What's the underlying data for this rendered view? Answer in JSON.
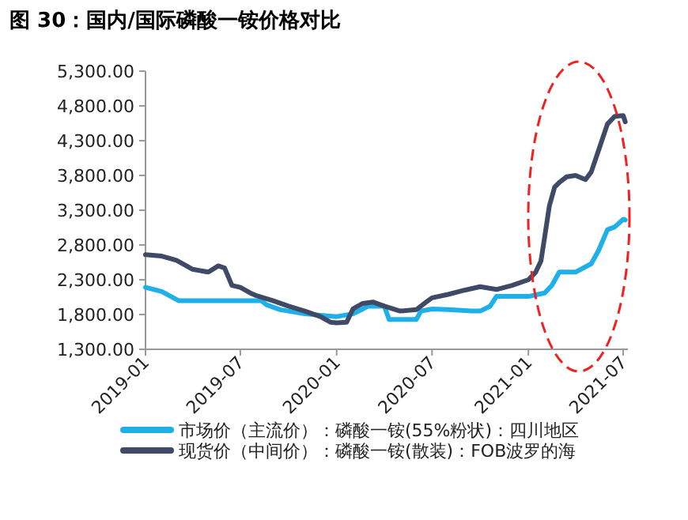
{
  "chart_data": {
    "type": "line",
    "title": "图 30：国内/国际磷酸一铵价格对比",
    "xlim": [
      "2019-01-01",
      "2021-07-10"
    ],
    "xticks": [
      "2019-01",
      "2019-07",
      "2020-01",
      "2020-07",
      "2021-01",
      "2021-07"
    ],
    "ylim": [
      1300,
      5300
    ],
    "yticks": [
      {
        "value": 1300,
        "label": "1,300.00"
      },
      {
        "value": 1800,
        "label": "1,800.00"
      },
      {
        "value": 2300,
        "label": "2,300.00"
      },
      {
        "value": 2800,
        "label": "2,800.00"
      },
      {
        "value": 3300,
        "label": "3,300.00"
      },
      {
        "value": 3800,
        "label": "3,800.00"
      },
      {
        "value": 4300,
        "label": "4,300.00"
      },
      {
        "value": 4800,
        "label": "4,800.00"
      },
      {
        "value": 5300,
        "label": "5,300.00"
      }
    ],
    "legend": "bottom",
    "grid": false,
    "series": [
      {
        "name": "市场价（主流价）：磷酸一铵(55%粉状)：四川地区",
        "color": "#1fb0ea",
        "x": [
          "2019-01-01",
          "2019-02-01",
          "2019-03-05",
          "2019-08-10",
          "2019-08-20",
          "2019-09-15",
          "2019-11-01",
          "2020-01-01",
          "2020-02-01",
          "2020-02-20",
          "2020-03-01",
          "2020-04-01",
          "2020-04-10",
          "2020-06-01",
          "2020-06-10",
          "2020-07-01",
          "2020-08-01",
          "2020-09-15",
          "2020-10-01",
          "2020-10-20",
          "2020-11-01",
          "2021-01-01",
          "2021-02-01",
          "2021-02-15",
          "2021-03-01",
          "2021-04-01",
          "2021-05-01",
          "2021-05-15",
          "2021-06-01",
          "2021-06-15",
          "2021-07-01",
          "2021-07-05"
        ],
        "values": [
          2190,
          2130,
          2000,
          2000,
          1940,
          1870,
          1810,
          1770,
          1810,
          1880,
          1920,
          1920,
          1730,
          1730,
          1850,
          1880,
          1870,
          1850,
          1850,
          1920,
          2060,
          2060,
          2110,
          2220,
          2410,
          2410,
          2530,
          2720,
          3020,
          3060,
          3170,
          3160
        ]
      },
      {
        "name": "现货价（中间价）：磷酸一铵(散装)：FOB波罗的海",
        "color": "#3f4b66",
        "x": [
          "2019-01-01",
          "2019-02-01",
          "2019-03-01",
          "2019-03-20",
          "2019-04-01",
          "2019-05-01",
          "2019-05-20",
          "2019-06-01",
          "2019-06-15",
          "2019-07-01",
          "2019-07-20",
          "2019-08-01",
          "2019-09-01",
          "2019-10-01",
          "2019-11-01",
          "2019-12-01",
          "2019-12-20",
          "2020-01-01",
          "2020-01-20",
          "2020-02-01",
          "2020-02-20",
          "2020-03-10",
          "2020-04-01",
          "2020-05-01",
          "2020-06-01",
          "2020-06-20",
          "2020-07-01",
          "2020-08-01",
          "2020-09-01",
          "2020-10-01",
          "2020-11-01",
          "2020-12-01",
          "2021-01-01",
          "2021-01-15",
          "2021-01-25",
          "2021-02-01",
          "2021-02-10",
          "2021-02-20",
          "2021-03-01",
          "2021-03-15",
          "2021-04-01",
          "2021-04-20",
          "2021-05-01",
          "2021-05-15",
          "2021-06-01",
          "2021-06-15",
          "2021-07-01",
          "2021-07-05"
        ],
        "values": [
          2660,
          2640,
          2580,
          2500,
          2450,
          2410,
          2500,
          2470,
          2220,
          2190,
          2110,
          2070,
          2000,
          1920,
          1850,
          1770,
          1690,
          1680,
          1690,
          1880,
          1960,
          1980,
          1920,
          1850,
          1870,
          1980,
          2040,
          2090,
          2150,
          2200,
          2160,
          2220,
          2300,
          2410,
          2570,
          2910,
          3360,
          3630,
          3700,
          3780,
          3800,
          3740,
          3850,
          4160,
          4540,
          4650,
          4660,
          4570
        ]
      }
    ]
  }
}
